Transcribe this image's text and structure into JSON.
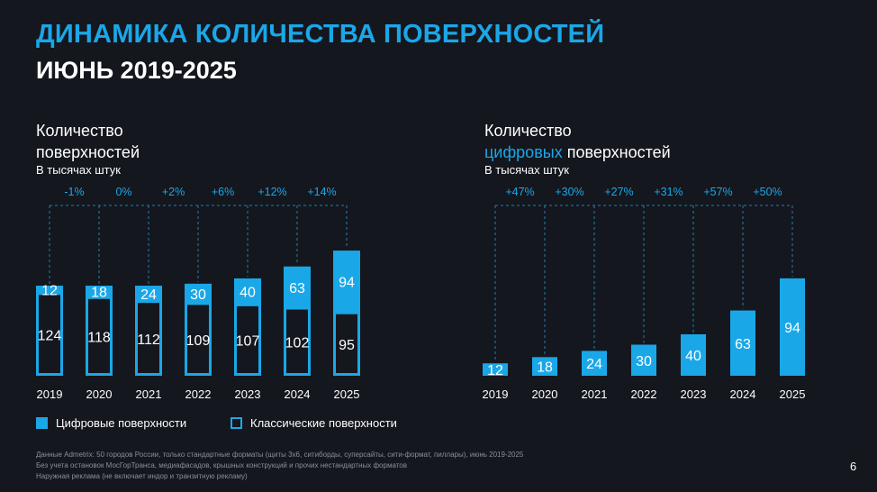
{
  "title": {
    "line1": "ДИНАМИКА КОЛИЧЕСТВА ПОВЕРХНОСТЕЙ",
    "line2": "ИЮНЬ 2019-2025"
  },
  "chart_left": {
    "heading1": "Количество",
    "heading2": "поверхностей",
    "unit": "В тысячах штук"
  },
  "chart_right": {
    "heading1": "Количество",
    "heading2_accent": "цифровых",
    "heading2_rest": " поверхностей",
    "unit": "В тысячах штук"
  },
  "legend": {
    "digital": "Цифровые поверхности",
    "classic": "Классические поверхности"
  },
  "footnote": [
    "Данные Admetrix: 50 городов России, только стандартные форматы (щиты 3х6, ситиборды, суперсайты, сити-формат, пиллары), июнь 2019-2025",
    "Без учета остановок МосГорТранса, медиафасадов, крышных конструкций и прочих нестандартных форматов",
    "Наружная реклама (не включает индор и транзитную рекламу)"
  ],
  "page_number": "6",
  "colors": {
    "accent": "#1aa7e8",
    "background": "#14171e",
    "dashed": "#1f7fb0"
  },
  "chart_data": [
    {
      "type": "bar",
      "stacked": true,
      "categories": [
        "2019",
        "2020",
        "2021",
        "2022",
        "2023",
        "2024",
        "2025"
      ],
      "series": [
        {
          "name": "Классические поверхности",
          "values": [
            124,
            118,
            112,
            109,
            107,
            102,
            95
          ]
        },
        {
          "name": "Цифровые поверхности",
          "values": [
            12,
            18,
            24,
            30,
            40,
            63,
            94
          ]
        }
      ],
      "annotations": [
        "-1%",
        "0%",
        "+2%",
        "+6%",
        "+12%",
        "+14%"
      ]
    },
    {
      "type": "bar",
      "categories": [
        "2019",
        "2020",
        "2021",
        "2022",
        "2023",
        "2024",
        "2025"
      ],
      "series": [
        {
          "name": "Цифровые поверхности",
          "values": [
            12,
            18,
            24,
            30,
            40,
            63,
            94
          ]
        }
      ],
      "annotations": [
        "+47%",
        "+30%",
        "+27%",
        "+31%",
        "+57%",
        "+50%"
      ]
    }
  ]
}
